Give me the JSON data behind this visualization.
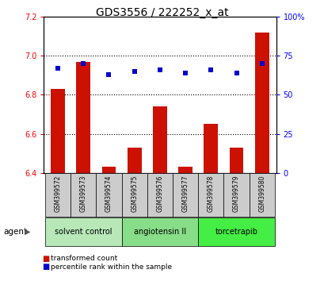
{
  "title": "GDS3556 / 222252_x_at",
  "samples": [
    "GSM399572",
    "GSM399573",
    "GSM399574",
    "GSM399575",
    "GSM399576",
    "GSM399577",
    "GSM399578",
    "GSM399579",
    "GSM399580"
  ],
  "transformed_count": [
    6.83,
    6.97,
    6.43,
    6.53,
    6.74,
    6.43,
    6.65,
    6.53,
    7.12
  ],
  "percentile_rank": [
    67,
    70,
    63,
    65,
    66,
    64,
    66,
    64,
    70
  ],
  "ylim_left": [
    6.4,
    7.2
  ],
  "yticks_left": [
    6.4,
    6.6,
    6.8,
    7.0,
    7.2
  ],
  "yticks_right": [
    0,
    25,
    50,
    75,
    100
  ],
  "ylim_right": [
    0,
    100
  ],
  "bar_color": "#cc1100",
  "dot_color": "#0000cc",
  "bar_width": 0.55,
  "baseline": 6.4,
  "groups": [
    {
      "label": "solvent control",
      "start": 0,
      "end": 3,
      "color": "#b8e8b8"
    },
    {
      "label": "angiotensin II",
      "start": 3,
      "end": 6,
      "color": "#88dd88"
    },
    {
      "label": "torcetrapib",
      "start": 6,
      "end": 9,
      "color": "#44ee44"
    }
  ],
  "agent_label": "agent",
  "legend_items": [
    {
      "label": "transformed count",
      "color": "#cc1100"
    },
    {
      "label": "percentile rank within the sample",
      "color": "#0000cc"
    }
  ],
  "title_fontsize": 10,
  "tick_fontsize": 7,
  "sample_fontsize": 5.5,
  "group_fontsize": 7,
  "legend_fontsize": 6.5
}
